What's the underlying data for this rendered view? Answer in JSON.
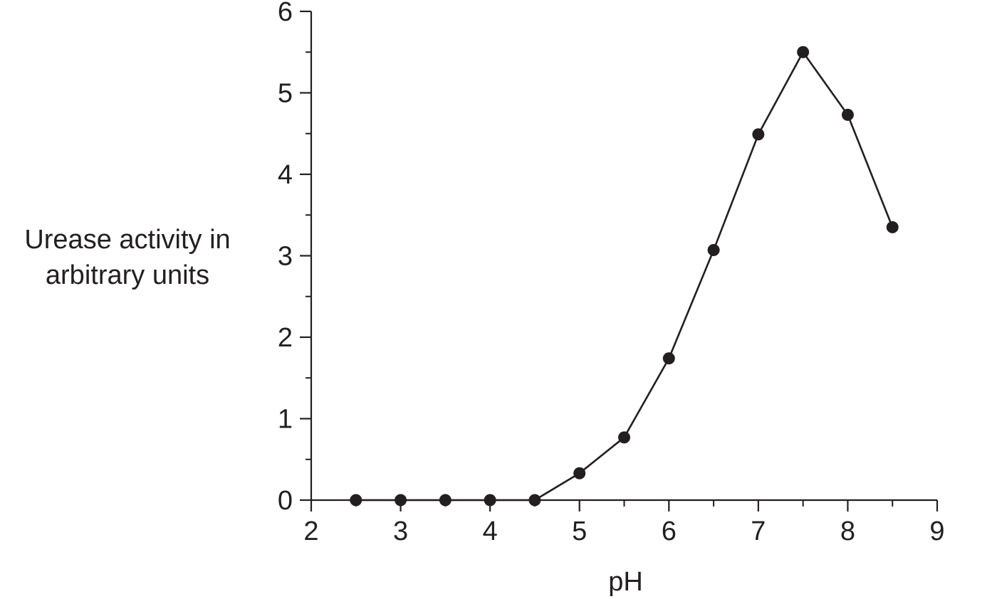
{
  "chart_data": {
    "type": "line",
    "title": "",
    "xlabel": "pH",
    "ylabel_lines": [
      "Urease activity in",
      "arbitrary units"
    ],
    "xlim": [
      2,
      9
    ],
    "ylim": [
      0,
      6
    ],
    "x_ticks": [
      2,
      3,
      4,
      5,
      6,
      7,
      8,
      9
    ],
    "y_ticks": [
      0,
      1,
      2,
      3,
      4,
      5,
      6
    ],
    "x_minor_step": 0.5,
    "y_minor_step": 0.5,
    "grid": false,
    "series": [
      {
        "x": [
          2.5,
          3.0,
          3.5,
          4.0,
          4.5,
          5.0,
          5.5,
          6.0,
          6.5,
          7.0,
          7.5,
          8.0,
          8.5
        ],
        "y": [
          0,
          0,
          0,
          0,
          0,
          0.33,
          0.77,
          1.74,
          3.07,
          4.49,
          5.5,
          4.73,
          3.35
        ],
        "color": "#231f20",
        "marker": "filled-circle"
      }
    ]
  }
}
